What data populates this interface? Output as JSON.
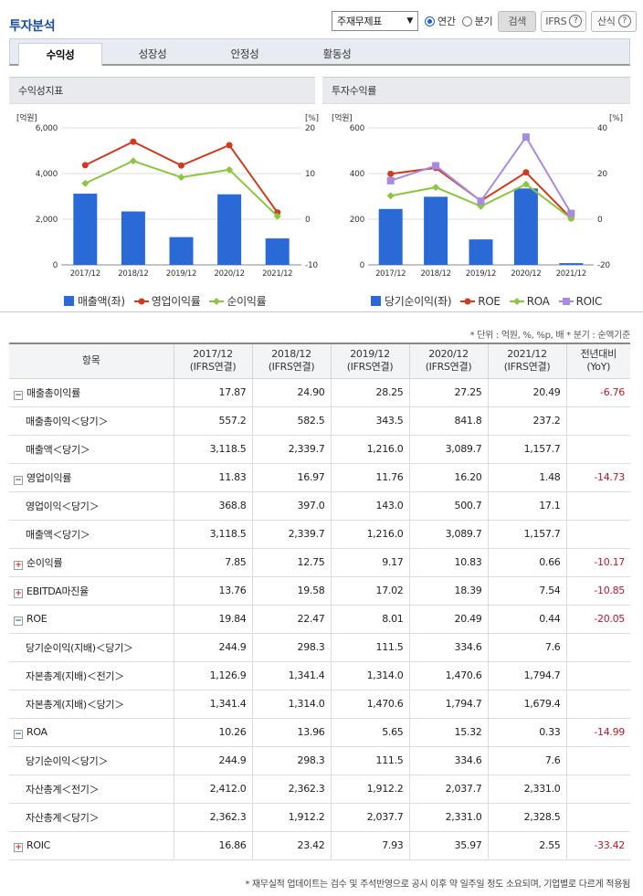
{
  "title": "투자분석",
  "controls": {
    "report_select": "주재무제표",
    "radio_annual": "연간",
    "radio_quarter": "분기",
    "search": "검색",
    "ifrs": "IFRS",
    "formula": "산식",
    "help": "?"
  },
  "tabs": [
    "수익성",
    "성장성",
    "안정성",
    "활동성"
  ],
  "left_chart": {
    "panel_title": "수익성지표",
    "left_unit": "[억원]",
    "right_unit": "[%]",
    "left_ticks": [
      "6,000",
      "4,000",
      "2,000",
      "0"
    ],
    "right_ticks": [
      "20",
      "10",
      "0",
      "-10"
    ],
    "categories": [
      "2017/12",
      "2018/12",
      "2019/12",
      "2020/12",
      "2021/12"
    ],
    "legend": [
      "매출액(좌)",
      "영업이익률",
      "순이익률"
    ]
  },
  "right_chart": {
    "panel_title": "투자수익률",
    "left_unit": "[억원]",
    "right_unit": "[%]",
    "left_ticks": [
      "600",
      "400",
      "200",
      "0"
    ],
    "right_ticks": [
      "40",
      "20",
      "0",
      "-20"
    ],
    "categories": [
      "2017/12",
      "2018/12",
      "2019/12",
      "2020/12",
      "2021/12"
    ],
    "legend": [
      "당기순이익(좌)",
      "ROE",
      "ROA",
      "ROIC"
    ]
  },
  "chart_data": [
    {
      "type": "bar+line",
      "title": "수익성지표",
      "categories": [
        "2017/12",
        "2018/12",
        "2019/12",
        "2020/12",
        "2021/12"
      ],
      "ylim_left": [
        0,
        6000
      ],
      "ylim_right": [
        -10,
        20
      ],
      "series": [
        {
          "name": "매출액(좌)",
          "kind": "bar",
          "axis": "left",
          "color": "#2a6ad6",
          "values": [
            3118.5,
            2339.7,
            1216.0,
            3089.7,
            1157.7
          ]
        },
        {
          "name": "영업이익률",
          "kind": "line",
          "axis": "right",
          "color": "#d03a1e",
          "values": [
            11.83,
            16.97,
            11.76,
            16.2,
            1.48
          ]
        },
        {
          "name": "순이익률",
          "kind": "line",
          "axis": "right",
          "color": "#8cc63f",
          "values": [
            7.85,
            12.75,
            9.17,
            10.83,
            0.66
          ]
        }
      ]
    },
    {
      "type": "bar+line",
      "title": "투자수익률",
      "categories": [
        "2017/12",
        "2018/12",
        "2019/12",
        "2020/12",
        "2021/12"
      ],
      "ylim_left": [
        0,
        600
      ],
      "ylim_right": [
        -20,
        40
      ],
      "series": [
        {
          "name": "당기순이익(좌)",
          "kind": "bar",
          "axis": "left",
          "color": "#2a6ad6",
          "values": [
            244.9,
            298.3,
            111.5,
            334.6,
            7.6
          ]
        },
        {
          "name": "ROE",
          "kind": "line",
          "axis": "right",
          "color": "#d03a1e",
          "values": [
            19.84,
            22.47,
            8.01,
            20.49,
            0.44
          ]
        },
        {
          "name": "ROA",
          "kind": "line",
          "axis": "right",
          "color": "#8cc63f",
          "values": [
            10.26,
            13.96,
            5.65,
            15.32,
            0.33
          ]
        },
        {
          "name": "ROIC",
          "kind": "line",
          "axis": "right",
          "color": "#a78be0",
          "values": [
            16.86,
            23.42,
            7.93,
            35.97,
            2.55
          ]
        }
      ]
    }
  ],
  "unit_note": "* 단위 : 억원, %, %p, 배   * 분기 : 순액기준",
  "table": {
    "header_item": "항목",
    "columns": [
      {
        "year": "2017/12",
        "basis": "(IFRS연결)"
      },
      {
        "year": "2018/12",
        "basis": "(IFRS연결)"
      },
      {
        "year": "2019/12",
        "basis": "(IFRS연결)"
      },
      {
        "year": "2020/12",
        "basis": "(IFRS연결)"
      },
      {
        "year": "2021/12",
        "basis": "(IFRS연결)"
      }
    ],
    "yoy_header": [
      "전년대비",
      "(YoY)"
    ],
    "rows": [
      {
        "label": "매출총이익률",
        "type": "minus",
        "values": [
          "17.87",
          "24.90",
          "28.25",
          "27.25",
          "20.49"
        ],
        "yoy": "-6.76"
      },
      {
        "label": "매출총이익＜당기＞",
        "type": "sub",
        "values": [
          "557.2",
          "582.5",
          "343.5",
          "841.8",
          "237.2"
        ],
        "yoy": ""
      },
      {
        "label": "매출액＜당기＞",
        "type": "sub",
        "values": [
          "3,118.5",
          "2,339.7",
          "1,216.0",
          "3,089.7",
          "1,157.7"
        ],
        "yoy": ""
      },
      {
        "label": "영업이익률",
        "type": "minus",
        "values": [
          "11.83",
          "16.97",
          "11.76",
          "16.20",
          "1.48"
        ],
        "yoy": "-14.73"
      },
      {
        "label": "영업이익＜당기＞",
        "type": "sub",
        "values": [
          "368.8",
          "397.0",
          "143.0",
          "500.7",
          "17.1"
        ],
        "yoy": ""
      },
      {
        "label": "매출액＜당기＞",
        "type": "sub",
        "values": [
          "3,118.5",
          "2,339.7",
          "1,216.0",
          "3,089.7",
          "1,157.7"
        ],
        "yoy": ""
      },
      {
        "label": "순이익률",
        "type": "plus",
        "values": [
          "7.85",
          "12.75",
          "9.17",
          "10.83",
          "0.66"
        ],
        "yoy": "-10.17"
      },
      {
        "label": "EBITDA마진율",
        "type": "plus",
        "values": [
          "13.76",
          "19.58",
          "17.02",
          "18.39",
          "7.54"
        ],
        "yoy": "-10.85"
      },
      {
        "label": "ROE",
        "type": "minus",
        "values": [
          "19.84",
          "22.47",
          "8.01",
          "20.49",
          "0.44"
        ],
        "yoy": "-20.05"
      },
      {
        "label": "당기순이익(지배)＜당기＞",
        "type": "sub",
        "values": [
          "244.9",
          "298.3",
          "111.5",
          "334.6",
          "7.6"
        ],
        "yoy": ""
      },
      {
        "label": "자본총계(지배)＜전기＞",
        "type": "sub",
        "values": [
          "1,126.9",
          "1,341.4",
          "1,314.0",
          "1,470.6",
          "1,794.7"
        ],
        "yoy": ""
      },
      {
        "label": "자본총계(지배)＜당기＞",
        "type": "sub",
        "values": [
          "1,341.4",
          "1,314.0",
          "1,470.6",
          "1,794.7",
          "1,679.4"
        ],
        "yoy": ""
      },
      {
        "label": "ROA",
        "type": "minus",
        "values": [
          "10.26",
          "13.96",
          "5.65",
          "15.32",
          "0.33"
        ],
        "yoy": "-14.99"
      },
      {
        "label": "당기순이익＜당기＞",
        "type": "sub",
        "values": [
          "244.9",
          "298.3",
          "111.5",
          "334.6",
          "7.6"
        ],
        "yoy": ""
      },
      {
        "label": "자산총계＜전기＞",
        "type": "sub",
        "values": [
          "2,412.0",
          "2,362.3",
          "1,912.2",
          "2,037.7",
          "2,331.0"
        ],
        "yoy": ""
      },
      {
        "label": "자산총계＜당기＞",
        "type": "sub",
        "values": [
          "2,362.3",
          "1,912.2",
          "2,037.7",
          "2,331.0",
          "2,328.5"
        ],
        "yoy": ""
      },
      {
        "label": "ROIC",
        "type": "plus",
        "values": [
          "16.86",
          "23.42",
          "7.93",
          "35.97",
          "2.55"
        ],
        "yoy": "-33.42"
      }
    ]
  },
  "footer_note": "* 재무실적 업데이트는 검수 및 주석반영으로 공시 이후 약 일주일 정도 소요되며, 기업별로 다르게 적용됨"
}
